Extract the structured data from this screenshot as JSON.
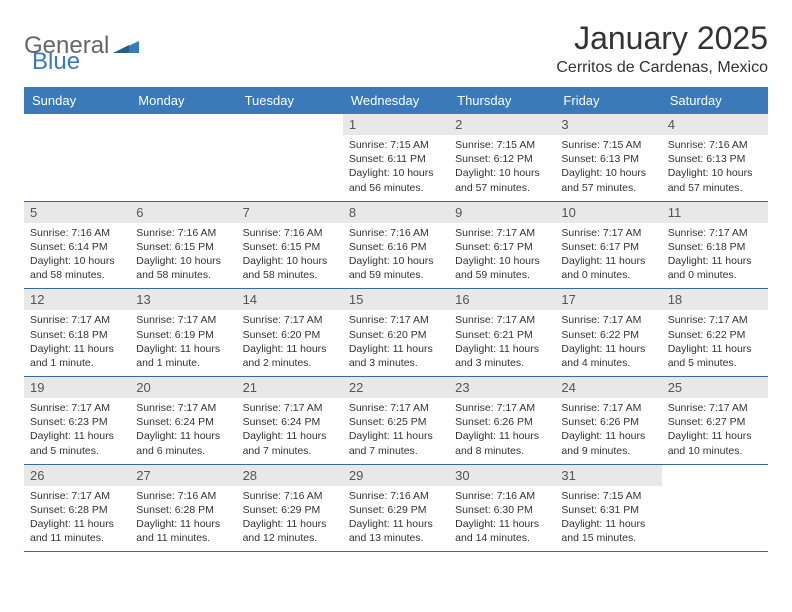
{
  "brand": {
    "part1": "General",
    "part2": "Blue"
  },
  "title": "January 2025",
  "location": "Cerritos de Cardenas, Mexico",
  "colors": {
    "header_bg": "#3a7ab8",
    "daynum_bg": "#e8e8e8",
    "week_border": "#3a6a9a",
    "text": "#333333",
    "brand_gray": "#666666",
    "brand_blue": "#3a7ab8",
    "page_bg": "#ffffff"
  },
  "typography": {
    "title_fontsize": 32,
    "location_fontsize": 16,
    "weekday_fontsize": 13,
    "daynum_fontsize": 13,
    "body_fontsize": 10.5
  },
  "weekdays": [
    "Sunday",
    "Monday",
    "Tuesday",
    "Wednesday",
    "Thursday",
    "Friday",
    "Saturday"
  ],
  "weeks": [
    [
      {
        "num": "",
        "lines": []
      },
      {
        "num": "",
        "lines": []
      },
      {
        "num": "",
        "lines": []
      },
      {
        "num": "1",
        "lines": [
          "Sunrise: 7:15 AM",
          "Sunset: 6:11 PM",
          "Daylight: 10 hours and 56 minutes."
        ]
      },
      {
        "num": "2",
        "lines": [
          "Sunrise: 7:15 AM",
          "Sunset: 6:12 PM",
          "Daylight: 10 hours and 57 minutes."
        ]
      },
      {
        "num": "3",
        "lines": [
          "Sunrise: 7:15 AM",
          "Sunset: 6:13 PM",
          "Daylight: 10 hours and 57 minutes."
        ]
      },
      {
        "num": "4",
        "lines": [
          "Sunrise: 7:16 AM",
          "Sunset: 6:13 PM",
          "Daylight: 10 hours and 57 minutes."
        ]
      }
    ],
    [
      {
        "num": "5",
        "lines": [
          "Sunrise: 7:16 AM",
          "Sunset: 6:14 PM",
          "Daylight: 10 hours and 58 minutes."
        ]
      },
      {
        "num": "6",
        "lines": [
          "Sunrise: 7:16 AM",
          "Sunset: 6:15 PM",
          "Daylight: 10 hours and 58 minutes."
        ]
      },
      {
        "num": "7",
        "lines": [
          "Sunrise: 7:16 AM",
          "Sunset: 6:15 PM",
          "Daylight: 10 hours and 58 minutes."
        ]
      },
      {
        "num": "8",
        "lines": [
          "Sunrise: 7:16 AM",
          "Sunset: 6:16 PM",
          "Daylight: 10 hours and 59 minutes."
        ]
      },
      {
        "num": "9",
        "lines": [
          "Sunrise: 7:17 AM",
          "Sunset: 6:17 PM",
          "Daylight: 10 hours and 59 minutes."
        ]
      },
      {
        "num": "10",
        "lines": [
          "Sunrise: 7:17 AM",
          "Sunset: 6:17 PM",
          "Daylight: 11 hours and 0 minutes."
        ]
      },
      {
        "num": "11",
        "lines": [
          "Sunrise: 7:17 AM",
          "Sunset: 6:18 PM",
          "Daylight: 11 hours and 0 minutes."
        ]
      }
    ],
    [
      {
        "num": "12",
        "lines": [
          "Sunrise: 7:17 AM",
          "Sunset: 6:18 PM",
          "Daylight: 11 hours and 1 minute."
        ]
      },
      {
        "num": "13",
        "lines": [
          "Sunrise: 7:17 AM",
          "Sunset: 6:19 PM",
          "Daylight: 11 hours and 1 minute."
        ]
      },
      {
        "num": "14",
        "lines": [
          "Sunrise: 7:17 AM",
          "Sunset: 6:20 PM",
          "Daylight: 11 hours and 2 minutes."
        ]
      },
      {
        "num": "15",
        "lines": [
          "Sunrise: 7:17 AM",
          "Sunset: 6:20 PM",
          "Daylight: 11 hours and 3 minutes."
        ]
      },
      {
        "num": "16",
        "lines": [
          "Sunrise: 7:17 AM",
          "Sunset: 6:21 PM",
          "Daylight: 11 hours and 3 minutes."
        ]
      },
      {
        "num": "17",
        "lines": [
          "Sunrise: 7:17 AM",
          "Sunset: 6:22 PM",
          "Daylight: 11 hours and 4 minutes."
        ]
      },
      {
        "num": "18",
        "lines": [
          "Sunrise: 7:17 AM",
          "Sunset: 6:22 PM",
          "Daylight: 11 hours and 5 minutes."
        ]
      }
    ],
    [
      {
        "num": "19",
        "lines": [
          "Sunrise: 7:17 AM",
          "Sunset: 6:23 PM",
          "Daylight: 11 hours and 5 minutes."
        ]
      },
      {
        "num": "20",
        "lines": [
          "Sunrise: 7:17 AM",
          "Sunset: 6:24 PM",
          "Daylight: 11 hours and 6 minutes."
        ]
      },
      {
        "num": "21",
        "lines": [
          "Sunrise: 7:17 AM",
          "Sunset: 6:24 PM",
          "Daylight: 11 hours and 7 minutes."
        ]
      },
      {
        "num": "22",
        "lines": [
          "Sunrise: 7:17 AM",
          "Sunset: 6:25 PM",
          "Daylight: 11 hours and 7 minutes."
        ]
      },
      {
        "num": "23",
        "lines": [
          "Sunrise: 7:17 AM",
          "Sunset: 6:26 PM",
          "Daylight: 11 hours and 8 minutes."
        ]
      },
      {
        "num": "24",
        "lines": [
          "Sunrise: 7:17 AM",
          "Sunset: 6:26 PM",
          "Daylight: 11 hours and 9 minutes."
        ]
      },
      {
        "num": "25",
        "lines": [
          "Sunrise: 7:17 AM",
          "Sunset: 6:27 PM",
          "Daylight: 11 hours and 10 minutes."
        ]
      }
    ],
    [
      {
        "num": "26",
        "lines": [
          "Sunrise: 7:17 AM",
          "Sunset: 6:28 PM",
          "Daylight: 11 hours and 11 minutes."
        ]
      },
      {
        "num": "27",
        "lines": [
          "Sunrise: 7:16 AM",
          "Sunset: 6:28 PM",
          "Daylight: 11 hours and 11 minutes."
        ]
      },
      {
        "num": "28",
        "lines": [
          "Sunrise: 7:16 AM",
          "Sunset: 6:29 PM",
          "Daylight: 11 hours and 12 minutes."
        ]
      },
      {
        "num": "29",
        "lines": [
          "Sunrise: 7:16 AM",
          "Sunset: 6:29 PM",
          "Daylight: 11 hours and 13 minutes."
        ]
      },
      {
        "num": "30",
        "lines": [
          "Sunrise: 7:16 AM",
          "Sunset: 6:30 PM",
          "Daylight: 11 hours and 14 minutes."
        ]
      },
      {
        "num": "31",
        "lines": [
          "Sunrise: 7:15 AM",
          "Sunset: 6:31 PM",
          "Daylight: 11 hours and 15 minutes."
        ]
      },
      {
        "num": "",
        "lines": []
      }
    ]
  ]
}
